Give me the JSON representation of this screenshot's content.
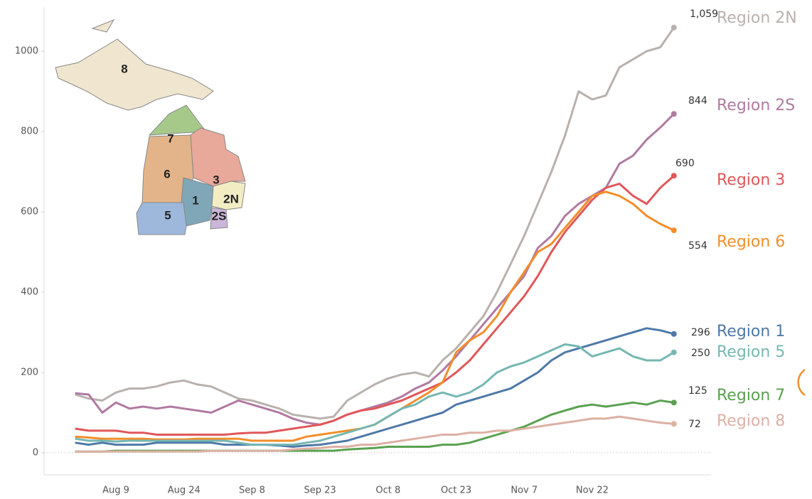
{
  "chart_data": {
    "type": "line",
    "categories": [
      null,
      null,
      null,
      "Aug 9",
      null,
      null,
      null,
      null,
      "Aug 24",
      null,
      null,
      null,
      null,
      "Sep 8",
      null,
      null,
      null,
      null,
      "Sep 23",
      null,
      null,
      null,
      null,
      "Oct 8",
      null,
      null,
      null,
      null,
      "Oct 23",
      null,
      null,
      null,
      null,
      "Nov 7",
      null,
      null,
      null,
      null,
      "Nov 22",
      null,
      null,
      null,
      null,
      null,
      null
    ],
    "ylim": [
      -55,
      1110
    ],
    "yticks": [
      0,
      200,
      400,
      600,
      800,
      1000
    ],
    "zero_line": true,
    "map_labels": [
      "8",
      "7",
      "6",
      "3",
      "1",
      "2N",
      "5",
      "2S"
    ],
    "series": [
      {
        "name": "Region 2N",
        "color": "#b9b1ad",
        "values": [
          145,
          135,
          130,
          150,
          160,
          160,
          165,
          175,
          180,
          170,
          165,
          150,
          135,
          130,
          120,
          110,
          95,
          90,
          85,
          90,
          130,
          150,
          170,
          185,
          195,
          200,
          190,
          230,
          260,
          300,
          340,
          400,
          470,
          540,
          620,
          700,
          790,
          900,
          880,
          890,
          960,
          980,
          1000,
          1010,
          1059
        ],
        "value_labels": [
          null,
          null,
          null,
          null,
          null,
          null,
          null,
          null,
          null,
          null,
          null,
          null,
          null,
          null,
          null,
          null,
          null,
          null,
          null,
          null,
          null,
          null,
          null,
          null,
          null,
          null,
          null,
          null,
          null,
          null,
          null,
          null,
          null,
          null,
          null,
          null,
          null,
          null,
          null,
          null,
          null,
          null,
          null,
          null,
          "1,059"
        ]
      },
      {
        "name": "Region 2S",
        "color": "#b07aa1",
        "values": [
          148,
          145,
          100,
          125,
          110,
          115,
          110,
          115,
          110,
          105,
          100,
          115,
          130,
          120,
          110,
          100,
          85,
          75,
          70,
          80,
          95,
          105,
          115,
          125,
          140,
          160,
          175,
          205,
          240,
          280,
          320,
          360,
          400,
          440,
          510,
          540,
          590,
          620,
          640,
          660,
          720,
          740,
          780,
          810,
          844
        ]
      },
      {
        "name": "Region 3",
        "color": "#e15759",
        "values": [
          60,
          55,
          55,
          55,
          50,
          50,
          45,
          45,
          45,
          45,
          45,
          45,
          48,
          50,
          50,
          55,
          60,
          65,
          70,
          80,
          95,
          105,
          110,
          120,
          130,
          145,
          160,
          175,
          200,
          230,
          270,
          310,
          350,
          390,
          440,
          500,
          550,
          590,
          630,
          660,
          670,
          640,
          620,
          660,
          690
        ]
      },
      {
        "name": "Region 6",
        "color": "#f28e2b",
        "values": [
          40,
          38,
          35,
          35,
          35,
          35,
          33,
          33,
          33,
          35,
          35,
          35,
          35,
          30,
          30,
          30,
          30,
          40,
          45,
          50,
          55,
          60,
          70,
          90,
          110,
          130,
          150,
          175,
          250,
          280,
          300,
          340,
          400,
          450,
          500,
          520,
          560,
          600,
          640,
          650,
          640,
          620,
          590,
          570,
          554
        ]
      },
      {
        "name": "Region 1",
        "color": "#4e79a7",
        "values": [
          25,
          20,
          25,
          20,
          20,
          20,
          25,
          25,
          25,
          25,
          25,
          20,
          20,
          20,
          20,
          18,
          15,
          18,
          20,
          25,
          30,
          40,
          50,
          60,
          70,
          80,
          90,
          100,
          120,
          130,
          140,
          150,
          160,
          180,
          200,
          230,
          250,
          260,
          270,
          280,
          290,
          300,
          310,
          305,
          296
        ]
      },
      {
        "name": "Region 5",
        "color": "#76b7b2",
        "values": [
          35,
          30,
          30,
          28,
          30,
          30,
          30,
          30,
          30,
          30,
          30,
          30,
          25,
          20,
          20,
          20,
          20,
          25,
          30,
          40,
          50,
          60,
          70,
          90,
          110,
          120,
          140,
          150,
          140,
          150,
          170,
          200,
          215,
          225,
          240,
          255,
          270,
          265,
          240,
          250,
          260,
          240,
          230,
          230,
          250
        ]
      },
      {
        "name": "Region 7",
        "color": "#59a14f",
        "values": [
          3,
          3,
          3,
          5,
          5,
          5,
          5,
          5,
          5,
          5,
          5,
          5,
          5,
          5,
          5,
          5,
          5,
          5,
          5,
          5,
          8,
          10,
          12,
          15,
          15,
          15,
          15,
          20,
          20,
          25,
          35,
          45,
          55,
          65,
          80,
          95,
          105,
          115,
          120,
          115,
          120,
          125,
          120,
          130,
          125
        ]
      },
      {
        "name": "Region 8",
        "color": "#dcb0a4",
        "values": [
          3,
          3,
          3,
          3,
          3,
          3,
          3,
          3,
          3,
          3,
          5,
          5,
          5,
          5,
          5,
          5,
          8,
          10,
          12,
          15,
          15,
          20,
          20,
          25,
          30,
          35,
          40,
          45,
          45,
          50,
          50,
          55,
          55,
          60,
          65,
          70,
          75,
          80,
          85,
          85,
          90,
          85,
          80,
          75,
          72
        ]
      }
    ]
  }
}
